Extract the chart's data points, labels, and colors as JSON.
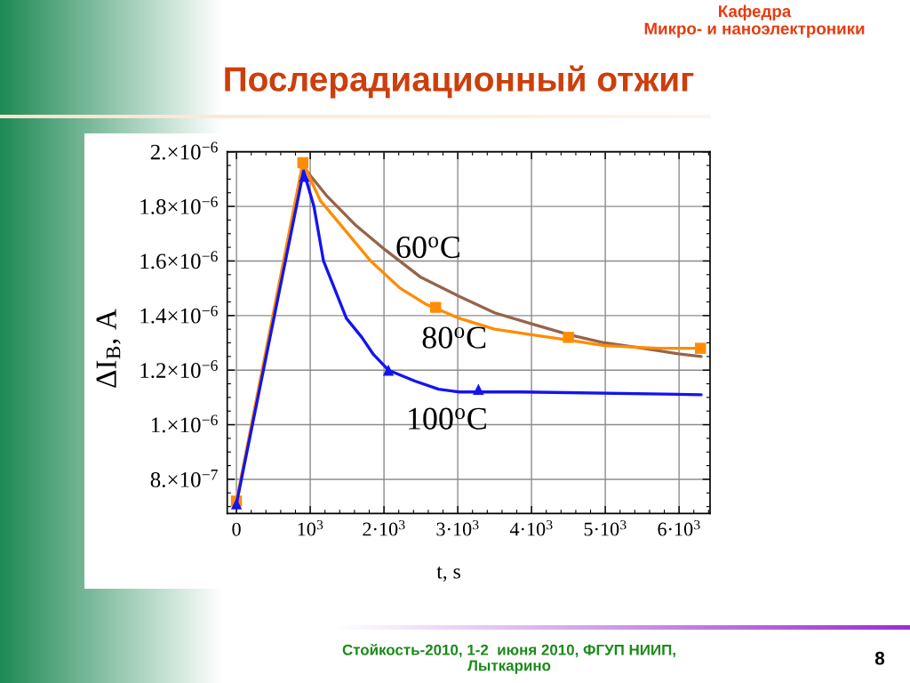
{
  "chart_data": {
    "type": "line",
    "title": "Послерадиационный отжиг",
    "xlabel": "t, s",
    "ylabel": "ΔI$_{B}$, A",
    "annotations": [
      "Кафедра\nМикро- и наноэлектроники",
      "Стойкость-2010, 1-2  июня 2010, ФГУП НИИП,\nЛыткарино",
      "8"
    ],
    "series": [
      {
        "name": "60$^{o}$C",
        "color": "#96644a",
        "x": [
          900,
          980,
          1220,
          1620,
          2020,
          2500,
          3020,
          3500,
          4000,
          4510,
          4990,
          5510,
          5990,
          6300
        ],
        "values": [
          1.95e-06,
          1.92e-06,
          1.84e-06,
          1.73e-06,
          1.64e-06,
          1.54e-06,
          1.47e-06,
          1.41e-06,
          1.37e-06,
          1.33e-06,
          1.3e-06,
          1.28e-06,
          1.26e-06,
          1.25e-06
        ]
      },
      {
        "name": "80$^{o}$C",
        "color": "#ff8c00",
        "x": [
          0,
          900,
          1140,
          1420,
          1820,
          2220,
          2580,
          3020,
          3500,
          4000,
          4500,
          4990,
          5710,
          6290
        ],
        "values": [
          7.2e-07,
          1.96e-06,
          1.82e-06,
          1.73e-06,
          1.6e-06,
          1.5e-06,
          1.44e-06,
          1.39e-06,
          1.35e-06,
          1.33e-06,
          1.31e-06,
          1.29e-06,
          1.28e-06,
          1.28e-06
        ]
      },
      {
        "type": "scatter",
        "marker": "square",
        "color": "#ff8c00",
        "x": [
          0,
          900,
          2700,
          4500,
          6290
        ],
        "values": [
          7.2e-07,
          1.96e-06,
          1.43e-06,
          1.32e-06,
          1.28e-06
        ]
      },
      {
        "name": "100$^{o}$C",
        "color": "#1414f0",
        "x": [
          0,
          910,
          1050,
          1180,
          1490,
          1700,
          1850,
          2060,
          2420,
          2740,
          3020,
          3280,
          3880,
          6300
        ],
        "values": [
          7.1e-07,
          1.93e-06,
          1.8e-06,
          1.6e-06,
          1.39e-06,
          1.32e-06,
          1.26e-06,
          1.2e-06,
          1.16e-06,
          1.13e-06,
          1.12e-06,
          1.12e-06,
          1.12e-06,
          1.11e-06
        ]
      },
      {
        "type": "scatter",
        "marker": "triangle",
        "color": "#1414f0",
        "x": [
          0,
          920,
          2060,
          3280
        ],
        "values": [
          7.1e-07,
          1.91e-06,
          1.2e-06,
          1.13e-06
        ]
      }
    ],
    "xlim": [
      -125,
      6420
    ],
    "xticks": [
      0,
      {
        "value": 1000,
        "label": "10$^{3}$"
      },
      {
        "value": 2000,
        "label": "2·10$^{3}$"
      },
      {
        "value": 3000,
        "label": "3·10$^{3}$"
      },
      {
        "value": 4000,
        "label": "4·10$^{3}$"
      },
      {
        "value": 5000,
        "label": "5·10$^{3}$"
      },
      {
        "value": 6000,
        "label": "6·10$^{3}$"
      }
    ],
    "ylim": [
      6.75e-07,
      2e-06
    ],
    "yticks": [
      {
        "value": 8e-07,
        "label": "8.×10$^{−7}$"
      },
      {
        "value": 1e-06,
        "label": "1.×10$^{−6}$"
      },
      {
        "value": 1.2e-06,
        "label": "1.2×10$^{−6}$"
      },
      {
        "value": 1.4e-06,
        "label": "1.4×10$^{−6}$"
      },
      {
        "value": 1.6e-06,
        "label": "1.6×10$^{−6}$"
      },
      {
        "value": 1.8e-06,
        "label": "1.8×10$^{−6}$"
      },
      {
        "value": 2e-06,
        "label": "2.×10$^{−6}$"
      }
    ],
    "grid": true
  }
}
